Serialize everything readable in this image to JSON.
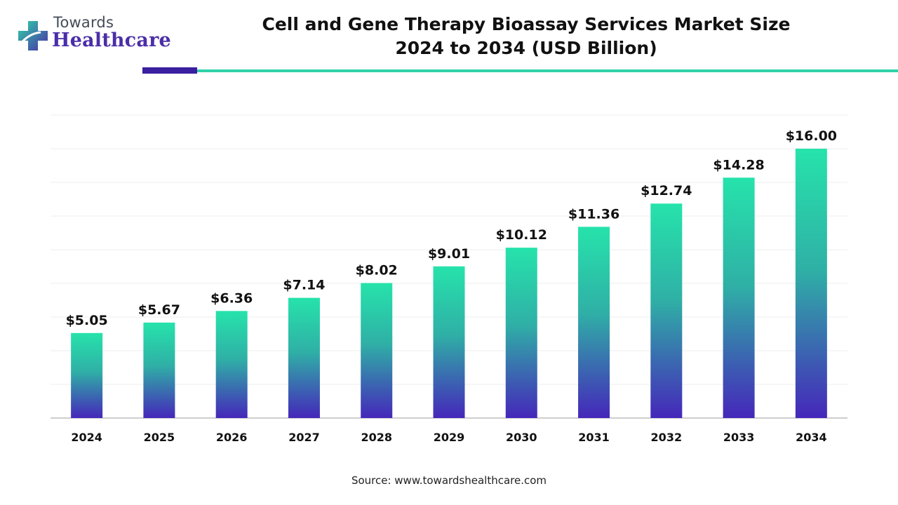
{
  "brand": {
    "line1": "Towards",
    "line2": "Healthcare",
    "colors": {
      "purple": "#4b2ea8",
      "teal": "#2fd3a8"
    }
  },
  "title": {
    "line1": "Cell and Gene Therapy Bioassay Services Market Size",
    "line2": "2024 to 2034 (USD Billion)"
  },
  "source": "Source: www.towardshealthcare.com",
  "chart_data": {
    "type": "bar",
    "categories": [
      "2024",
      "2025",
      "2026",
      "2027",
      "2028",
      "2029",
      "2030",
      "2031",
      "2032",
      "2033",
      "2034"
    ],
    "values": [
      5.05,
      5.67,
      6.36,
      7.14,
      8.02,
      9.01,
      10.12,
      11.36,
      12.74,
      14.28,
      16.0
    ],
    "data_labels": [
      "$5.05",
      "$5.67",
      "$6.36",
      "$7.14",
      "$8.02",
      "$9.01",
      "$10.12",
      "$11.36",
      "$12.74",
      "$14.28",
      "$16.00"
    ],
    "ylim": [
      0,
      18
    ],
    "grid": true,
    "legend": "none",
    "bar_gradient": {
      "top": "#26e3ab",
      "bottom": "#4527ba"
    }
  }
}
